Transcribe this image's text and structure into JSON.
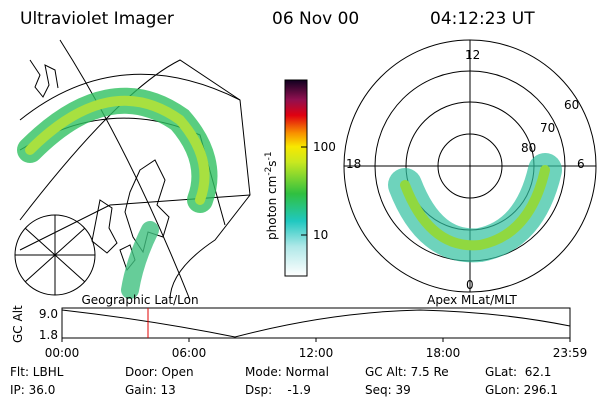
{
  "header": {
    "title": "Ultraviolet Imager",
    "date": "06 Nov 00",
    "time": "04:12:23 UT"
  },
  "colorbar": {
    "label": {
      "unit": "photon cm",
      "exp1": "-2",
      "unit2": "s",
      "exp2": "-1"
    },
    "ticks": [
      "100",
      "10"
    ]
  },
  "polar_plot": {
    "labels": [
      "12",
      "60",
      "70",
      "80",
      "18",
      "6",
      "0"
    ]
  },
  "captions": {
    "left": "Geographic Lat/Lon",
    "right": "Apex MLat/MLT"
  },
  "altitude_plot": {
    "axis_label": "GC Alt",
    "y_labels": [
      "9.0",
      "1.8"
    ],
    "x_labels": [
      "00:00",
      "06:00",
      "12:00",
      "18:00",
      "23:59"
    ]
  },
  "info": {
    "rows": [
      [
        "Flt: LBHL",
        "Door: Open",
        "Mode: Normal",
        "GC Alt: 7.5 Re",
        "GLat:  62.1"
      ],
      [
        "IP: 36.0",
        "Gain: 13",
        "Dsp:    -1.9",
        "Seq: 39",
        "GLon: 296.1"
      ]
    ]
  }
}
